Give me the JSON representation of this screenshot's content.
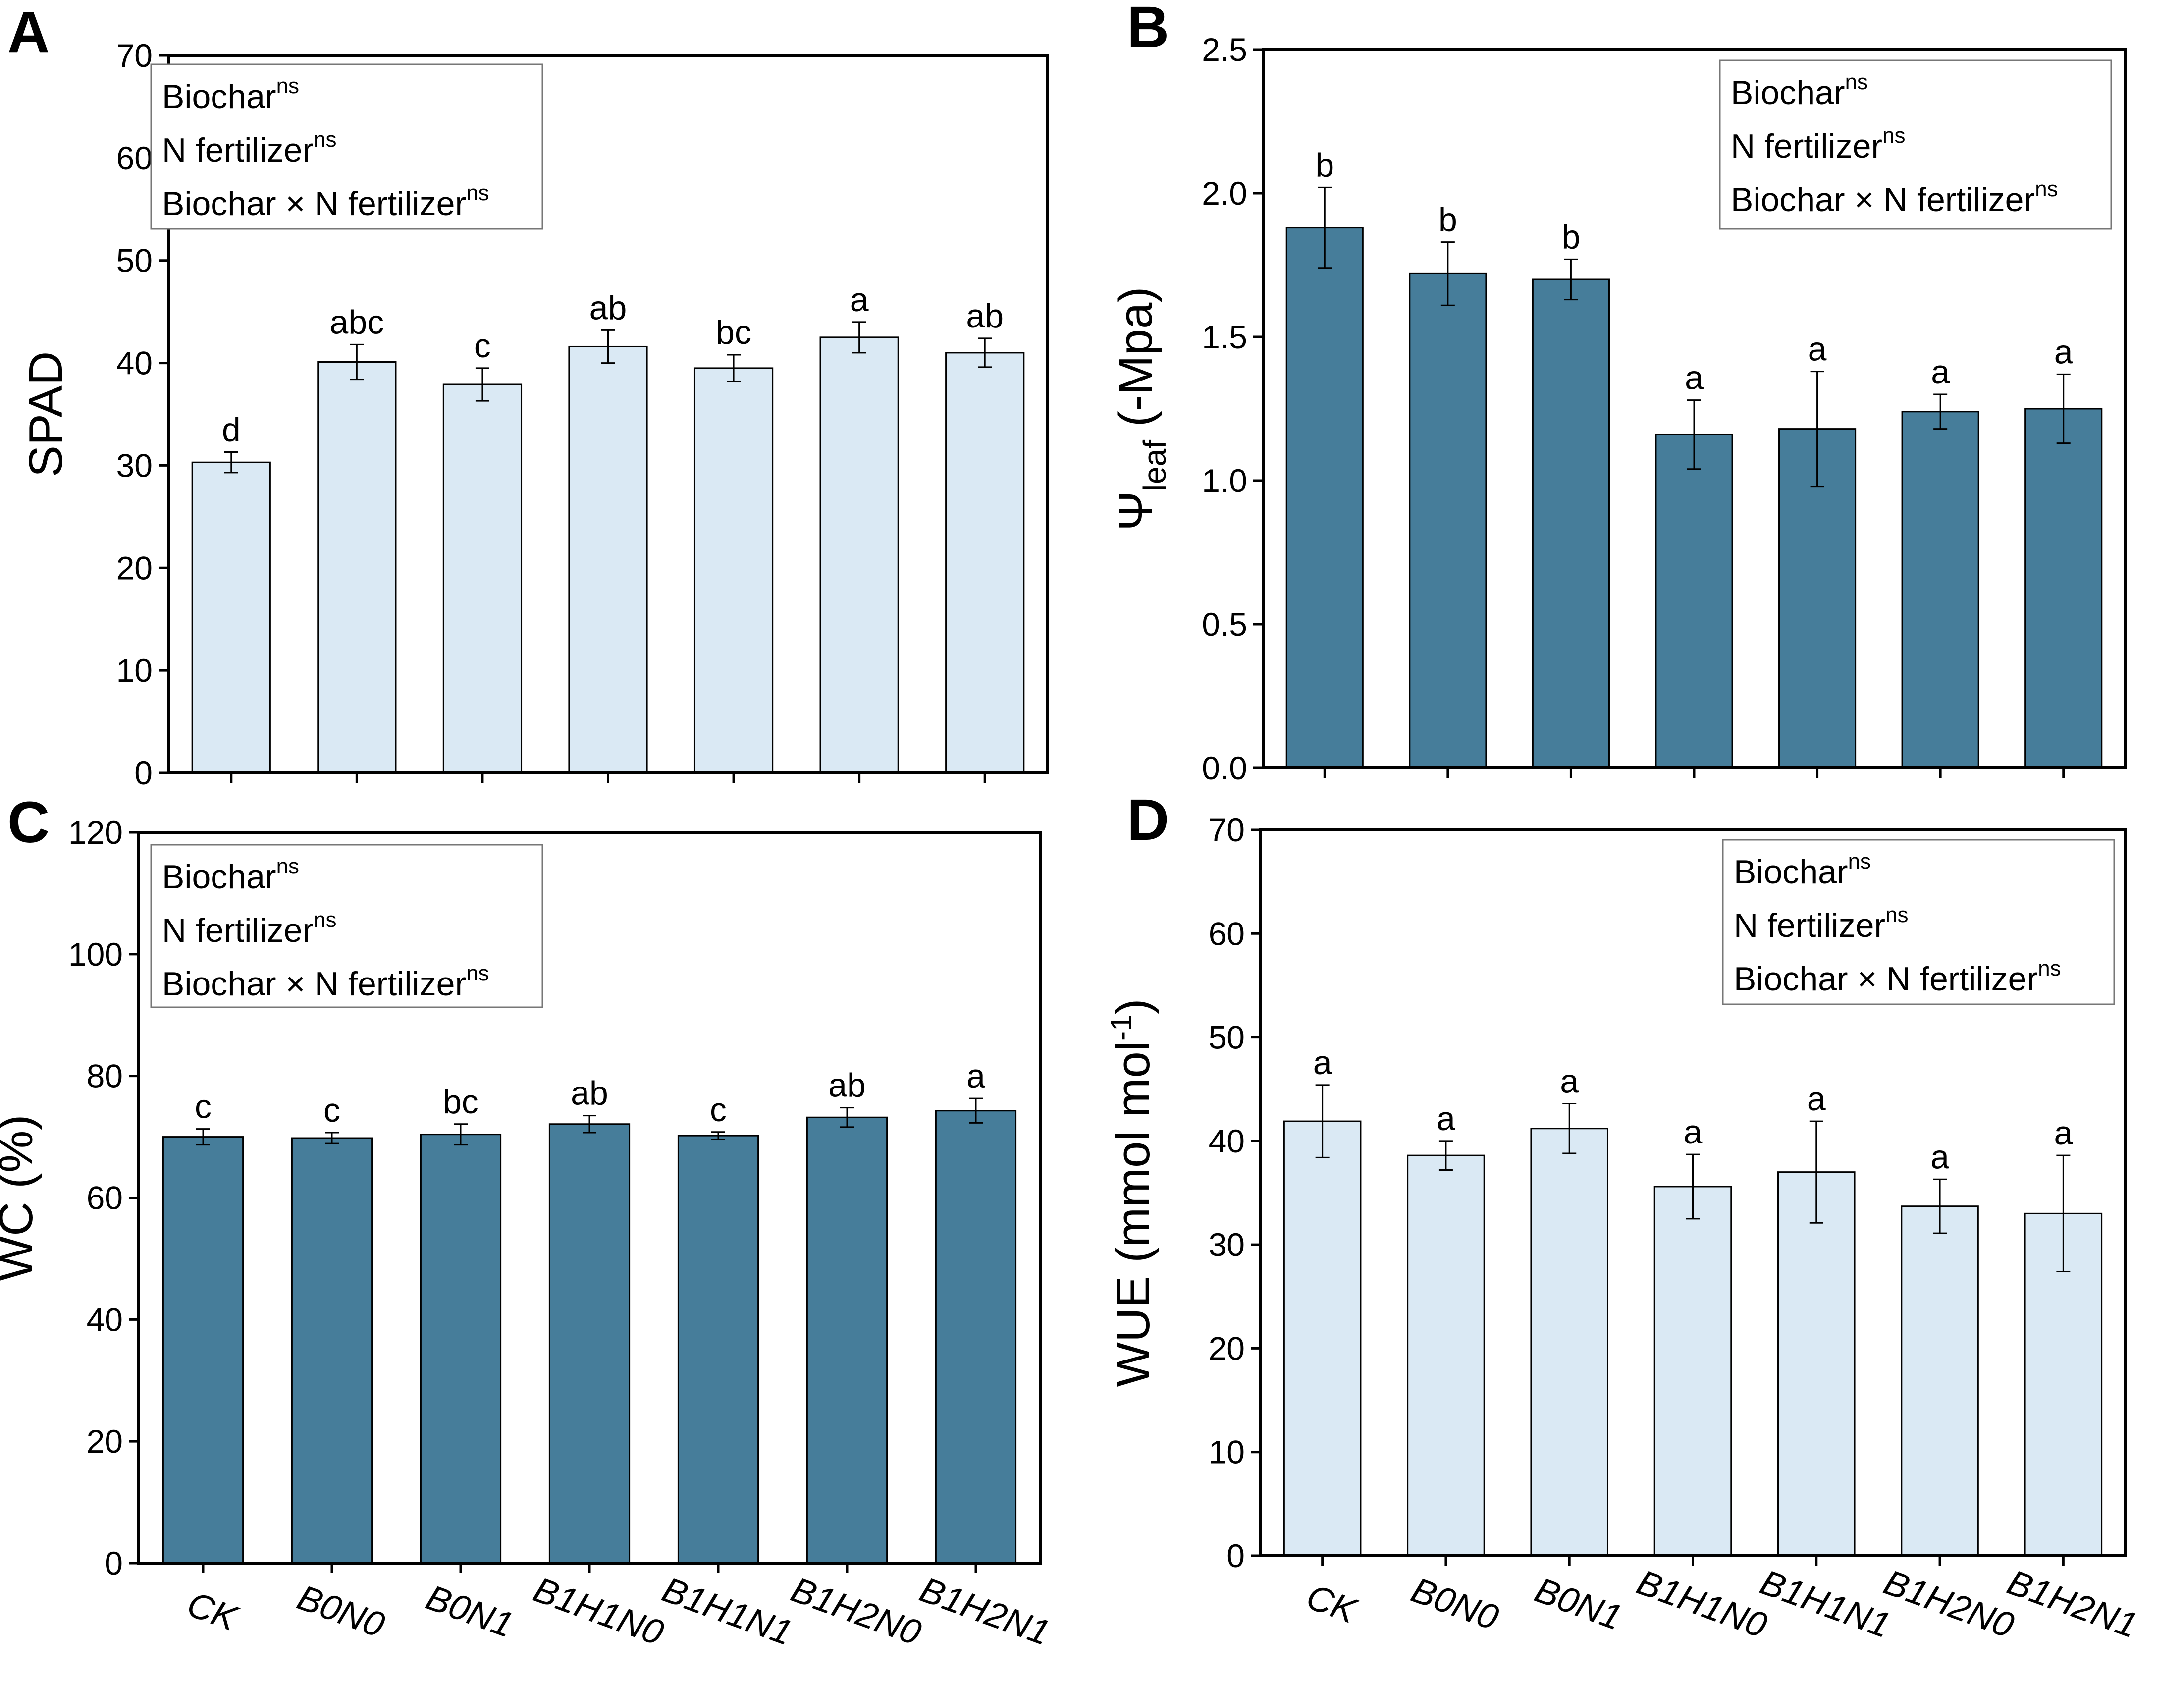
{
  "figure": {
    "categories": [
      "CK",
      "B0N0",
      "B0N1",
      "B1H1N0",
      "B1H1N1",
      "B1H2N0",
      "B1H2N1"
    ],
    "colors": {
      "light_bar": "#dae9f4",
      "dark_bar": "#467d9a",
      "axis": "#000000"
    },
    "legend_superscript": "ns"
  },
  "chart_data": [
    {
      "type": "bar",
      "panel_label": "A",
      "title": "",
      "xlabel": "",
      "ylabel": "SPAD",
      "ylim": [
        0,
        70
      ],
      "yticks": [
        "0",
        "10",
        "20",
        "30",
        "40",
        "50",
        "60",
        "70"
      ],
      "show_x_labels": false,
      "bar_color": "#dae9f4",
      "legend_position": "top-left",
      "legend": [
        "Biochar",
        "N fertilizer",
        "Biochar × N fertilizer"
      ],
      "series": [
        {
          "name": "SPAD",
          "values": [
            30.3,
            40.1,
            37.9,
            41.6,
            39.5,
            42.5,
            41.0
          ],
          "errors": [
            1.0,
            1.7,
            1.6,
            1.6,
            1.3,
            1.5,
            1.4
          ],
          "significance": [
            "d",
            "abc",
            "c",
            "ab",
            "bc",
            "a",
            "ab"
          ]
        }
      ]
    },
    {
      "type": "bar",
      "panel_label": "B",
      "title": "",
      "xlabel": "",
      "ylabel": "Ψ",
      "ylabel_sub": "leaf",
      "ylabel_suffix": " (-Mpa)",
      "ylim": [
        0,
        2.5
      ],
      "yticks": [
        "0.0",
        "0.5",
        "1.0",
        "1.5",
        "2.0",
        "2.5"
      ],
      "show_x_labels": false,
      "bar_color": "#467d9a",
      "legend_position": "top-right",
      "legend": [
        "Biochar",
        "N fertilizer",
        "Biochar × N fertilizer"
      ],
      "series": [
        {
          "name": "Ψleaf",
          "values": [
            1.88,
            1.72,
            1.7,
            1.16,
            1.18,
            1.24,
            1.25
          ],
          "errors": [
            0.14,
            0.11,
            0.07,
            0.12,
            0.2,
            0.06,
            0.12
          ],
          "significance": [
            "b",
            "b",
            "b",
            "a",
            "a",
            "a",
            "a"
          ]
        }
      ]
    },
    {
      "type": "bar",
      "panel_label": "C",
      "title": "",
      "xlabel": "",
      "ylabel": "WC (%)",
      "ylim": [
        0,
        120
      ],
      "yticks": [
        "0",
        "20",
        "40",
        "60",
        "80",
        "100",
        "120"
      ],
      "show_x_labels": true,
      "bar_color": "#467d9a",
      "legend_position": "top-left",
      "legend": [
        "Biochar",
        "N fertilizer",
        "Biochar × N fertilizer"
      ],
      "series": [
        {
          "name": "WC",
          "values": [
            70.0,
            69.8,
            70.4,
            72.1,
            70.2,
            73.2,
            74.3
          ],
          "errors": [
            1.3,
            0.9,
            1.7,
            1.4,
            0.6,
            1.6,
            2.0
          ],
          "significance": [
            "c",
            "c",
            "bc",
            "ab",
            "c",
            "ab",
            "a"
          ]
        }
      ]
    },
    {
      "type": "bar",
      "panel_label": "D",
      "title": "",
      "xlabel": "",
      "ylabel": "WUE (mmol mol",
      "ylabel_sup": "-1",
      "ylabel_suffix": ")",
      "ylim": [
        0,
        70
      ],
      "yticks": [
        "0",
        "10",
        "20",
        "30",
        "40",
        "50",
        "60",
        "70"
      ],
      "show_x_labels": true,
      "bar_color": "#dae9f4",
      "legend_position": "top-right",
      "legend": [
        "Biochar",
        "N fertilizer",
        "Biochar × N fertilizer"
      ],
      "series": [
        {
          "name": "WUE",
          "values": [
            41.9,
            38.6,
            41.2,
            35.6,
            37.0,
            33.7,
            33.0
          ],
          "errors": [
            3.5,
            1.4,
            2.4,
            3.1,
            4.9,
            2.6,
            5.6
          ],
          "significance": [
            "a",
            "a",
            "a",
            "a",
            "a",
            "a",
            "a"
          ]
        }
      ]
    }
  ]
}
